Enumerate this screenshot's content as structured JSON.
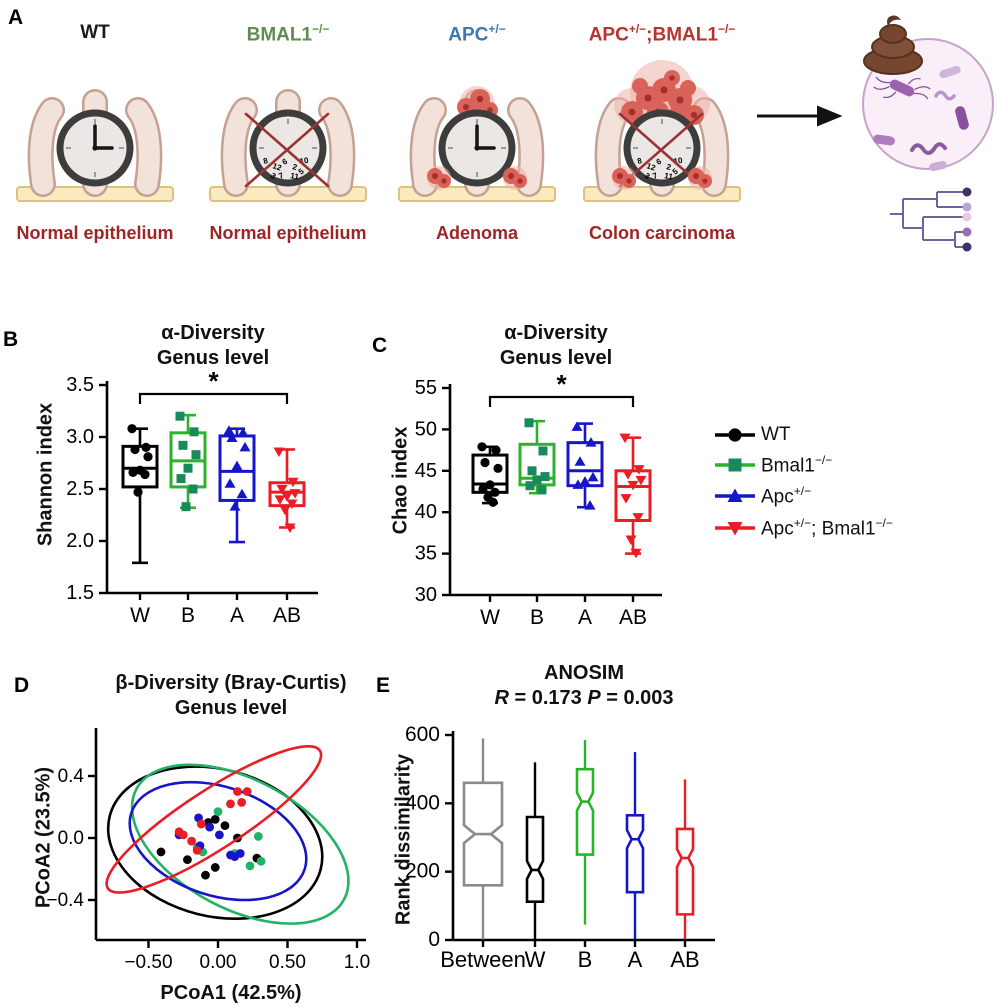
{
  "panels": {
    "a": "A",
    "b": "B",
    "c": "C",
    "d": "D",
    "e": "E"
  },
  "panel_a": {
    "label": "A",
    "caption_color": "#9c2626",
    "clock_numbers": [
      "8",
      "12",
      "6",
      "2",
      "10",
      "3",
      "7",
      "11",
      "5"
    ],
    "models": [
      {
        "label_parts": [
          {
            "t": "WT",
            "sup": false
          }
        ],
        "color": "#1a1a1a",
        "caption": "Normal epithelium"
      },
      {
        "label_parts": [
          {
            "t": "BMAL1",
            "sup": false
          },
          {
            "t": "−/−",
            "sup": true
          }
        ],
        "color": "#5f8d4e",
        "caption": "Normal epithelium"
      },
      {
        "label_parts": [
          {
            "t": "APC",
            "sup": false
          },
          {
            "t": "+/−",
            "sup": true
          }
        ],
        "color": "#3d7ab5",
        "caption": "Adenoma"
      },
      {
        "label_parts": [
          {
            "t": "APC",
            "sup": false
          },
          {
            "t": "+/−",
            "sup": true
          },
          {
            "t": ";BMAL1",
            "sup": false
          },
          {
            "t": "−/−",
            "sup": true
          }
        ],
        "color": "#b5342e",
        "caption": "Colon carcinoma"
      }
    ]
  },
  "legend": {
    "items": [
      {
        "marker": "circle",
        "color": "#000000",
        "marker_color": "#000000",
        "label_parts": [
          {
            "t": "WT",
            "sup": false
          }
        ]
      },
      {
        "marker": "square",
        "color": "#2bb32b",
        "marker_color": "#1a8a5c",
        "label_parts": [
          {
            "t": "Bmal1",
            "sup": false
          },
          {
            "t": "−/−",
            "sup": true
          }
        ]
      },
      {
        "marker": "triangle-up",
        "color": "#1616c8",
        "marker_color": "#1616c8",
        "label_parts": [
          {
            "t": "Apc",
            "sup": false
          },
          {
            "t": "+/−",
            "sup": true
          }
        ]
      },
      {
        "marker": "triangle-down",
        "color": "#ea1c24",
        "marker_color": "#ea1c24",
        "label_parts": [
          {
            "t": "Apc",
            "sup": false
          },
          {
            "t": "+/−",
            "sup": true
          },
          {
            "t": "; Bmal1",
            "sup": false
          },
          {
            "t": "−/−",
            "sup": true
          }
        ]
      }
    ]
  },
  "chart_data": [
    {
      "id": "shannon",
      "type": "box",
      "panel": "B",
      "title": "α-Diversity",
      "subtitle": "Genus level",
      "ylabel": "Shannon index",
      "ylim": [
        1.5,
        3.5
      ],
      "yticks": [
        {
          "v": 1.5,
          "t": "1.5"
        },
        {
          "v": 2.0,
          "t": "2.0"
        },
        {
          "v": 2.5,
          "t": "2.5"
        },
        {
          "v": 3.0,
          "t": "3.0"
        },
        {
          "v": 3.5,
          "t": "3.5"
        }
      ],
      "categories": [
        "W",
        "B",
        "A",
        "AB"
      ],
      "significance": {
        "from": 0,
        "to": 3,
        "label": "*"
      },
      "series": [
        {
          "name": "WT",
          "color": "#000000",
          "marker": "circle",
          "marker_color": "#000000",
          "whislo": 1.79,
          "q1": 2.52,
          "med": 2.7,
          "q3": 2.91,
          "whishi": 3.08,
          "points": [
            3.08,
            2.9,
            2.88,
            2.81,
            2.68,
            2.66,
            2.64,
            2.47
          ]
        },
        {
          "name": "Bmal1−/−",
          "color": "#2bb32b",
          "marker": "square",
          "marker_color": "#1a8a5c",
          "whislo": 2.32,
          "q1": 2.52,
          "med": 2.77,
          "q3": 3.04,
          "whishi": 3.21,
          "points": [
            3.2,
            3.05,
            2.92,
            2.83,
            2.7,
            2.6,
            2.5,
            2.33
          ]
        },
        {
          "name": "Apc+/−",
          "color": "#1616c8",
          "marker": "triangle-up",
          "marker_color": "#1616c8",
          "whislo": 1.99,
          "q1": 2.39,
          "med": 2.67,
          "q3": 3.01,
          "whishi": 3.08,
          "points": [
            3.06,
            3.04,
            2.99,
            2.9,
            2.72,
            2.55,
            2.45,
            2.33
          ]
        },
        {
          "name": "Apc+/−;Bmal1−/−",
          "color": "#ea1c24",
          "marker": "triangle-down",
          "marker_color": "#ea1c24",
          "whislo": 2.13,
          "q1": 2.34,
          "med": 2.47,
          "q3": 2.56,
          "whishi": 2.88,
          "points": [
            2.86,
            2.57,
            2.5,
            2.46,
            2.43,
            2.4,
            2.36,
            2.3,
            2.13
          ]
        }
      ]
    },
    {
      "id": "chao",
      "type": "box",
      "panel": "C",
      "title": "α-Diversity",
      "subtitle": "Genus level",
      "ylabel": "Chao index",
      "ylim": [
        30,
        55
      ],
      "yticks": [
        {
          "v": 30,
          "t": "30"
        },
        {
          "v": 35,
          "t": "35"
        },
        {
          "v": 40,
          "t": "40"
        },
        {
          "v": 45,
          "t": "45"
        },
        {
          "v": 50,
          "t": "50"
        },
        {
          "v": 55,
          "t": "55"
        }
      ],
      "categories": [
        "W",
        "B",
        "A",
        "AB"
      ],
      "significance": {
        "from": 0,
        "to": 3,
        "label": "*"
      },
      "series": [
        {
          "name": "WT",
          "color": "#000000",
          "marker": "circle",
          "marker_color": "#000000",
          "whislo": 41.1,
          "q1": 42.4,
          "med": 43.4,
          "q3": 46.9,
          "whishi": 47.9,
          "points": [
            47.9,
            47.5,
            46.0,
            45.3,
            43.3,
            42.8,
            42.4,
            41.8,
            41.2
          ]
        },
        {
          "name": "Bmal1−/−",
          "color": "#2bb32b",
          "marker": "square",
          "marker_color": "#1a8a5c",
          "whislo": 42.3,
          "q1": 43.3,
          "med": 44.1,
          "q3": 48.2,
          "whishi": 51.0,
          "points": [
            50.8,
            47.4,
            45.0,
            44.3,
            43.9,
            43.2,
            42.7
          ]
        },
        {
          "name": "Apc+/−",
          "color": "#1616c8",
          "marker": "triangle-up",
          "marker_color": "#1616c8",
          "whislo": 40.6,
          "q1": 43.2,
          "med": 45.0,
          "q3": 48.4,
          "whishi": 50.7,
          "points": [
            50.3,
            48.4,
            46.1,
            44.2,
            43.7,
            43.3,
            40.8
          ]
        },
        {
          "name": "Apc+/−;Bmal1−/−",
          "color": "#ea1c24",
          "marker": "triangle-down",
          "marker_color": "#ea1c24",
          "whislo": 35.0,
          "q1": 39.0,
          "med": 43.1,
          "q3": 45.0,
          "whishi": 49.0,
          "points": [
            49.0,
            45.2,
            44.6,
            43.9,
            43.3,
            41.7,
            39.4,
            36.7,
            35.1
          ]
        }
      ]
    },
    {
      "id": "pcoa",
      "type": "scatter",
      "panel": "D",
      "title": "β-Diversity (Bray-Curtis)",
      "subtitle": "Genus level",
      "xlabel": "PCoA1 (42.5%)",
      "ylabel": "PCoA2 (23.5%)",
      "xlim": [
        -0.85,
        1.05
      ],
      "ylim": [
        -0.72,
        0.62
      ],
      "xticks": [
        {
          "v": -0.5,
          "t": "−0.50"
        },
        {
          "v": 0,
          "t": "0.00"
        },
        {
          "v": 0.5,
          "t": "0.50"
        },
        {
          "v": 1.0,
          "t": "1.0"
        }
      ],
      "yticks": [
        {
          "v": 0.4,
          "t": "0.4"
        },
        {
          "v": 0,
          "t": "0.0"
        },
        {
          "v": -0.4,
          "t": "−0.4"
        }
      ],
      "groups": [
        {
          "name": "WT",
          "color": "#000000",
          "ellipse": {
            "cx": -0.02,
            "cy": -0.03,
            "rx": 0.74,
            "ry": 0.5,
            "angle": -14
          },
          "points": [
            [
              -0.02,
              0.12
            ],
            [
              0.05,
              0.08
            ],
            [
              -0.07,
              0.1
            ],
            [
              0.14,
              0.0
            ],
            [
              -0.41,
              -0.09
            ],
            [
              -0.22,
              -0.14
            ],
            [
              -0.02,
              -0.19
            ],
            [
              -0.09,
              -0.24
            ],
            [
              0.28,
              -0.13
            ]
          ]
        },
        {
          "name": "Bmal1−/−",
          "color": "#22b366",
          "ellipse": {
            "cx": 0.16,
            "cy": -0.04,
            "rx": 0.8,
            "ry": 0.44,
            "angle": -28
          },
          "points": [
            [
              0.0,
              0.17
            ],
            [
              0.29,
              0.01
            ],
            [
              -0.11,
              -0.09
            ],
            [
              -0.15,
              -0.06
            ],
            [
              0.23,
              -0.18
            ],
            [
              0.31,
              -0.15
            ],
            [
              0.12,
              -0.1
            ]
          ]
        },
        {
          "name": "Apc+/−",
          "color": "#1616c8",
          "ellipse": {
            "cx": 0.0,
            "cy": -0.02,
            "rx": 0.62,
            "ry": 0.37,
            "angle": -18
          },
          "points": [
            [
              -0.14,
              0.13
            ],
            [
              -0.06,
              0.07
            ],
            [
              -0.28,
              0.02
            ],
            [
              0.01,
              0.02
            ],
            [
              -0.13,
              -0.05
            ],
            [
              0.09,
              -0.11
            ],
            [
              0.12,
              -0.12
            ],
            [
              0.16,
              -0.1
            ]
          ]
        },
        {
          "name": "Apc+/−;Bmal1−/−",
          "color": "#ea1c24",
          "ellipse": {
            "cx": -0.03,
            "cy": 0.12,
            "rx": 0.86,
            "ry": 0.2,
            "angle": 33
          },
          "points": [
            [
              0.14,
              0.3
            ],
            [
              0.21,
              0.3
            ],
            [
              0.09,
              0.22
            ],
            [
              0.17,
              0.23
            ],
            [
              -0.12,
              0.09
            ],
            [
              -0.25,
              0.02
            ],
            [
              -0.28,
              0.04
            ],
            [
              -0.19,
              -0.02
            ],
            [
              -0.15,
              -0.08
            ]
          ]
        }
      ]
    },
    {
      "id": "anosim",
      "type": "notched-box",
      "panel": "E",
      "title": "ANOSIM",
      "stats_parts": [
        {
          "t": "R",
          "i": true
        },
        {
          "t": " = 0.173 ",
          "i": false
        },
        {
          "t": "P",
          "i": true
        },
        {
          "t": " = 0.003",
          "i": false
        }
      ],
      "ylabel": "Rank dissimilarity",
      "ylim": [
        0,
        600
      ],
      "yticks": [
        {
          "v": 0,
          "t": "0"
        },
        {
          "v": 200,
          "t": "200"
        },
        {
          "v": 400,
          "t": "400"
        },
        {
          "v": 600,
          "t": "600"
        }
      ],
      "categories": [
        "Between",
        "W",
        "B",
        "A",
        "AB"
      ],
      "series": [
        {
          "name": "Between",
          "color": "#8a8a8a",
          "whislo": 2,
          "q1": 160,
          "med": 310,
          "q3": 460,
          "whishi": 590
        },
        {
          "name": "W",
          "color": "#000000",
          "whislo": 2,
          "q1": 112,
          "med": 205,
          "q3": 360,
          "whishi": 520
        },
        {
          "name": "B",
          "color": "#2bb32b",
          "whislo": 45,
          "q1": 250,
          "med": 405,
          "q3": 500,
          "whishi": 585
        },
        {
          "name": "A",
          "color": "#1616c8",
          "whislo": 2,
          "q1": 140,
          "med": 295,
          "q3": 365,
          "whishi": 550
        },
        {
          "name": "AB",
          "color": "#ea1c24",
          "whislo": 2,
          "q1": 75,
          "med": 240,
          "q3": 325,
          "whishi": 470
        }
      ]
    }
  ]
}
